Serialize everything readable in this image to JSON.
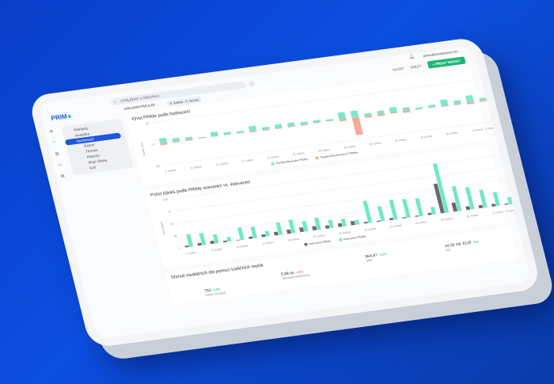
{
  "app": {
    "logo": "PRIM"
  },
  "search": {
    "placeholder": "VYHLEDAT V ARCHIVU"
  },
  "header": {
    "user_email": "prime@mediaboard.com",
    "share_label": "ULOŽIT",
    "export_label": "SDÍLET",
    "add_widget_label": "+ PŘIDAT WIDGET"
  },
  "filters": {
    "preset": "ZÁKLADNÍ PŘEHLED ...",
    "date_range": "5. května - 5. června"
  },
  "sidebar": {
    "items": [
      {
        "label": "Přehledy"
      },
      {
        "label": "Analytika"
      },
      {
        "label": "Dashboard",
        "active": true
      },
      {
        "label": "Export"
      },
      {
        "label": "Témata"
      },
      {
        "label": "Reporty"
      },
      {
        "label": "Moje články"
      },
      {
        "label": "Koš"
      }
    ]
  },
  "chart_data": [
    {
      "type": "bar",
      "title": "Vývoj PRIMe podle hodnocení",
      "ylabel": "PRIMe skóre",
      "yticks": [
        "25",
        "0",
        "-25"
      ],
      "categories": [
        "5. května",
        "",
        "8. května",
        "",
        "10. května",
        "",
        "12. května",
        "",
        "14. května",
        "",
        "16. května",
        "",
        "18. května",
        "",
        "20. května",
        "",
        "22. května",
        "",
        "24. května",
        "",
        "26. května",
        "",
        "30. května",
        "",
        "3. června",
        "5. června"
      ],
      "series": [
        {
          "name": "Pozitivní/Neutrální PRIMe",
          "color": "#7ee8c9",
          "values": [
            6,
            4,
            3,
            1,
            5,
            3,
            2,
            6,
            3,
            4,
            4,
            3,
            3,
            2,
            8,
            8,
            3,
            4,
            6,
            4,
            2,
            3,
            7,
            4,
            8,
            3
          ]
        },
        {
          "name": "Negativní/Kontroverzní PRIMe",
          "color": "#f5a99a",
          "values": [
            -2,
            -1,
            -1,
            0,
            0,
            0,
            0,
            -1,
            -1,
            -1,
            -1,
            -1,
            0,
            0,
            -2,
            -20,
            -2,
            -2,
            -1,
            -2,
            0,
            0,
            -1,
            -1,
            -2,
            -1
          ]
        }
      ]
    },
    {
      "type": "bar",
      "title": "Počet článků podle PRIMe relevantní vs. irelevantní",
      "ylabel": "Počet článků",
      "yticks": [
        "100",
        "75",
        "50",
        "25",
        "0"
      ],
      "categories": [
        "5. května",
        "",
        "8. května",
        "",
        "10. května",
        "",
        "12. května",
        "",
        "14. května",
        "",
        "16. května",
        "",
        "18. května",
        "",
        "20. května",
        "",
        "22. května",
        "",
        "24. května",
        "",
        "26. května",
        "",
        "30. května",
        "",
        "3. června",
        "5. června"
      ],
      "series": [
        {
          "name": "Irelevantní PRIMe",
          "color": "#6b6b6b",
          "values": [
            3,
            5,
            6,
            3,
            1,
            4,
            5,
            7,
            8,
            9,
            8,
            6,
            7,
            8,
            3,
            2,
            4,
            2,
            2,
            4,
            60,
            18,
            7,
            6,
            5,
            2
          ]
        },
        {
          "name": "Relevantní PRIMe",
          "color": "#6fe8c6",
          "values": [
            25,
            24,
            18,
            9,
            25,
            23,
            11,
            25,
            27,
            21,
            24,
            16,
            15,
            9,
            45,
            30,
            40,
            38,
            36,
            15,
            100,
            50,
            45,
            36,
            28,
            14
          ]
        }
      ]
    }
  ],
  "summary": {
    "title": "Shrnutí mediálních dat pomocí tradičních metrik",
    "metrics": [
      {
        "value": "753",
        "change": "+13%",
        "label": "POČET ČLÁNKŮ",
        "dir": "up"
      },
      {
        "value": "5,98 tis.",
        "change": "-43%",
        "label": "SOCIÁLNÍ INTERAKCE",
        "dir": "dn"
      },
      {
        "value": "964,87",
        "change": "+13%",
        "label": "GRP",
        "dir": "up"
      },
      {
        "value": "14,39 mil. EUR",
        "change": "+5%",
        "label": "AVE",
        "dir": "up"
      }
    ]
  }
}
